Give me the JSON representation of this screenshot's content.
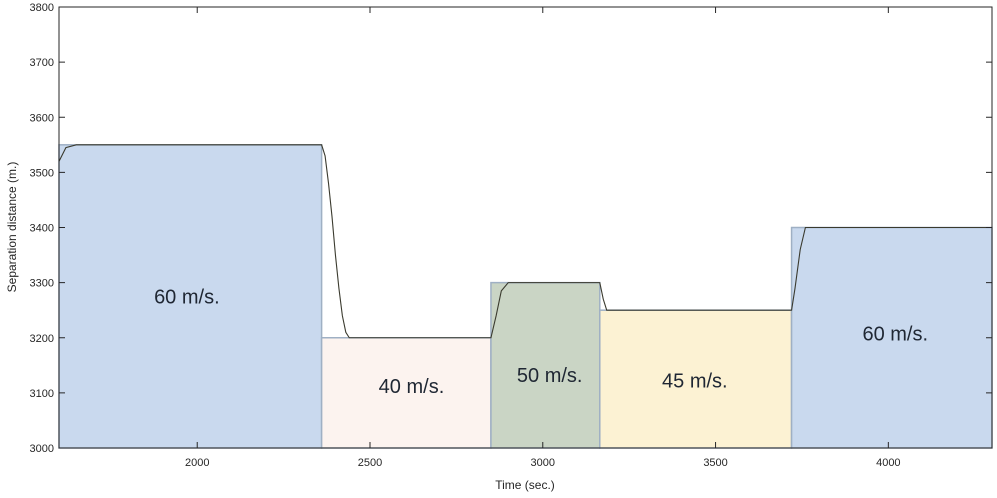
{
  "chart_data": {
    "type": "line",
    "title": "",
    "xlabel": "Time (sec.)",
    "ylabel": "Separation distance (m.)",
    "xlim": [
      1600,
      4300
    ],
    "ylim": [
      3000,
      3800
    ],
    "xticks": [
      2000,
      2500,
      3000,
      3500,
      4000
    ],
    "yticks": [
      3000,
      3100,
      3200,
      3300,
      3400,
      3500,
      3600,
      3700,
      3800
    ],
    "grid": false,
    "regions": [
      {
        "x0": 1600,
        "x1": 2360,
        "value": 3550,
        "label": "60 m/s.",
        "color": "#c9d9ee",
        "label_xy": [
          1970,
          3262
        ]
      },
      {
        "x0": 2360,
        "x1": 2850,
        "value": 3200,
        "label": "40 m/s.",
        "color": "#fcf3ef",
        "label_xy": [
          2620,
          3100
        ]
      },
      {
        "x0": 2850,
        "x1": 3165,
        "value": 3300,
        "label": "50 m/s.",
        "color": "#cad5c5",
        "label_xy": [
          3020,
          3120
        ]
      },
      {
        "x0": 3165,
        "x1": 3720,
        "value": 3250,
        "label": "45 m/s.",
        "color": "#fcf2d3",
        "label_xy": [
          3440,
          3110
        ]
      },
      {
        "x0": 3720,
        "x1": 4300,
        "value": 3400,
        "label": "60 m/s.",
        "color": "#c9d9ee",
        "label_xy": [
          4020,
          3195
        ]
      }
    ],
    "series": [
      {
        "x": [
          1600,
          1620,
          1650,
          2360,
          2370,
          2380,
          2390,
          2400,
          2410,
          2420,
          2430,
          2440,
          2850,
          2865,
          2880,
          2900,
          3165,
          3175,
          3185,
          3720,
          3730,
          3745,
          3760,
          4300
        ],
        "y": [
          3520,
          3545,
          3550,
          3550,
          3530,
          3480,
          3420,
          3350,
          3290,
          3240,
          3210,
          3200,
          3200,
          3240,
          3285,
          3300,
          3300,
          3270,
          3250,
          3250,
          3290,
          3360,
          3400,
          3400
        ]
      }
    ],
    "line_color": "#3a3a2e",
    "region_edge_color": "#9fb0c4"
  }
}
